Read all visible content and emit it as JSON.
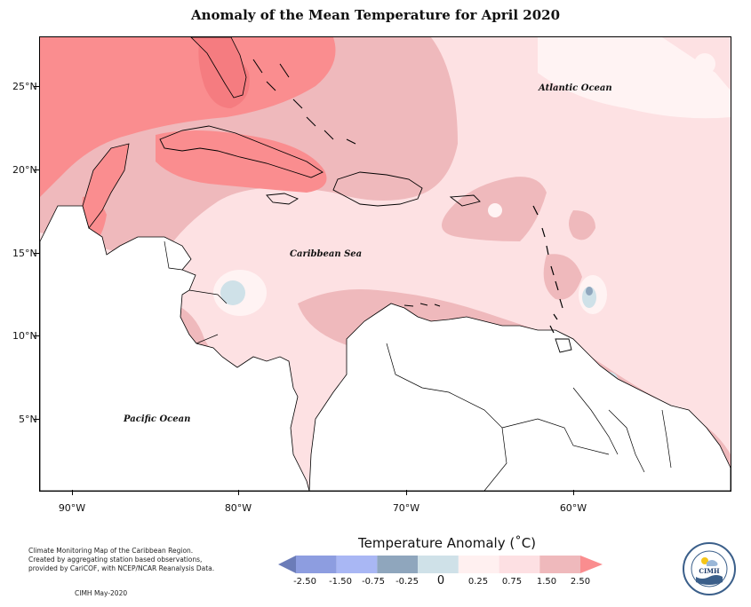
{
  "title": "Anomaly of the Mean Temperature for April 2020",
  "map": {
    "y_labels": [
      "25°N",
      "20°N",
      "15°N",
      "10°N",
      "5°N"
    ],
    "x_labels": [
      "90°W",
      "80°W",
      "70°W",
      "60°W"
    ],
    "regions": {
      "atlantic": "Atlantic Ocean",
      "caribbean": "Caribbean Sea",
      "pacific": "Pacific Ocean"
    }
  },
  "legend": {
    "title": "Temperature Anomaly (˚C)",
    "values": [
      "-2.50",
      "-1.50",
      "-0.75",
      "-0.25",
      "0",
      "0.25",
      "0.75",
      "1.50",
      "2.50"
    ],
    "colors": [
      "#6b7cb8",
      "#8d9de0",
      "#a9b7f4",
      "#8fa6bd",
      "#cfe1e8",
      "#fff0f0",
      "#fde0e3",
      "#efb9bc",
      "#fa8d8f"
    ]
  },
  "credit": {
    "lines": [
      "Climate Monitoring Map of the Caribbean Region.",
      "Created by aggregating station based observations,",
      "provided by CariCOF, with NCEP/NCAR Reanalysis Data."
    ],
    "issued": "CIMH May-2020"
  },
  "logo": {
    "text": "CIMH",
    "ring_text": "Caribbean Institute for Meteorology and Hydrology"
  }
}
